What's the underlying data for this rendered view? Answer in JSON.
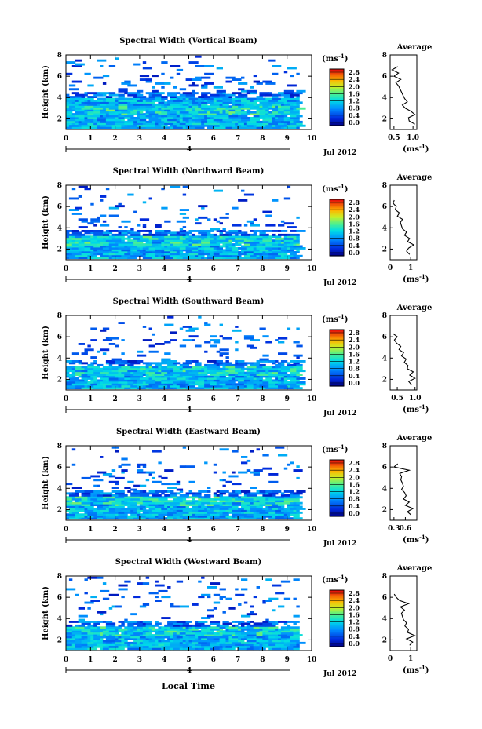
{
  "figure": {
    "xlabel": "Local Time",
    "units_label": "(ms",
    "units_exp": "-1",
    "units_close": ")",
    "avg_title": "Average",
    "date_label": "Jul 2012",
    "day_marker": "4",
    "height_label": "Height (km)",
    "colorbar_ticks": [
      "0.0",
      "0.4",
      "0.8",
      "1.2",
      "1.6",
      "2.0",
      "2.4",
      "2.8"
    ],
    "colorbar_range": [
      0.0,
      2.8
    ],
    "colors": {
      "low": "#000080",
      "mid": "#00c8c8",
      "high": "#ff2000"
    }
  },
  "chart_data": [
    {
      "type": "heatmap",
      "title": "Spectral Width (Vertical Beam)",
      "xlabel": "Local Time",
      "ylabel": "Height (km)",
      "xlim": [
        0,
        10
      ],
      "ylim": [
        1,
        8
      ],
      "xticks": [
        "0",
        "1",
        "2",
        "3",
        "4",
        "5",
        "6",
        "7",
        "8",
        "9",
        "10"
      ],
      "yticks": [
        "2",
        "4",
        "6",
        "8"
      ],
      "colorbar_ticks": [
        "0.0",
        "0.4",
        "0.8",
        "1.2",
        "1.6",
        "2.0",
        "2.4",
        "2.8"
      ],
      "average": {
        "xlim": [
          0.4,
          1.1
        ],
        "xticks": [
          "0.5",
          "1.0"
        ],
        "height": [
          1.5,
          1.8,
          2.1,
          2.4,
          2.7,
          3.0,
          3.3,
          3.6,
          3.9,
          4.2,
          4.5,
          4.8,
          5.1,
          5.4,
          5.7,
          6.0,
          6.3,
          6.6,
          6.9
        ],
        "width": [
          1.05,
          0.9,
          0.88,
          1.05,
          0.95,
          0.8,
          0.72,
          0.85,
          0.78,
          0.74,
          0.7,
          0.66,
          0.62,
          0.55,
          0.68,
          0.5,
          0.62,
          0.45,
          0.6
        ]
      }
    },
    {
      "type": "heatmap",
      "title": "Spectral Width (Northward Beam)",
      "xlabel": "Local Time",
      "ylabel": "Height (km)",
      "xlim": [
        0,
        10
      ],
      "ylim": [
        1,
        8
      ],
      "xticks": [
        "0",
        "1",
        "2",
        "3",
        "4",
        "5",
        "6",
        "7",
        "8",
        "9",
        "10"
      ],
      "yticks": [
        "2",
        "4",
        "6",
        "8"
      ],
      "colorbar_ticks": [
        "0.0",
        "0.4",
        "0.8",
        "1.2",
        "1.6",
        "2.0",
        "2.4",
        "2.8"
      ],
      "average": {
        "xlim": [
          0,
          1.3
        ],
        "xticks": [
          "0",
          "1"
        ],
        "height": [
          1.5,
          1.8,
          2.1,
          2.4,
          2.7,
          3.0,
          3.3,
          3.6,
          3.9,
          4.2,
          4.5,
          4.8,
          5.1,
          5.4,
          5.7,
          6.0,
          6.3,
          6.6
        ],
        "width": [
          0.95,
          0.8,
          0.9,
          1.15,
          0.85,
          0.95,
          0.7,
          0.8,
          0.6,
          0.55,
          0.5,
          0.6,
          0.35,
          0.45,
          0.25,
          0.3,
          0.15,
          0.2
        ]
      }
    },
    {
      "type": "heatmap",
      "title": "Spectral Width (Southward Beam)",
      "xlabel": "Local Time",
      "ylabel": "Height (km)",
      "xlim": [
        0,
        10
      ],
      "ylim": [
        1,
        8
      ],
      "xticks": [
        "0",
        "1",
        "2",
        "3",
        "4",
        "5",
        "6",
        "7",
        "8",
        "9",
        "10"
      ],
      "yticks": [
        "2",
        "4",
        "6",
        "8"
      ],
      "colorbar_ticks": [
        "0.0",
        "0.4",
        "0.8",
        "1.2",
        "1.6",
        "2.0",
        "2.4",
        "2.8"
      ],
      "average": {
        "xlim": [
          0.3,
          1.05
        ],
        "xticks": [
          "0.5",
          "1.0"
        ],
        "height": [
          1.5,
          1.8,
          2.1,
          2.4,
          2.7,
          3.0,
          3.3,
          3.6,
          3.9,
          4.2,
          4.5,
          4.8,
          5.1,
          5.4,
          5.7,
          6.0,
          6.3
        ],
        "width": [
          0.9,
          0.82,
          1.0,
          0.85,
          0.95,
          0.78,
          0.8,
          0.7,
          0.75,
          0.62,
          0.68,
          0.55,
          0.6,
          0.48,
          0.42,
          0.5,
          0.38
        ]
      }
    },
    {
      "type": "heatmap",
      "title": "Spectral Width (Eastward Beam)",
      "xlabel": "Local Time",
      "ylabel": "Height (km)",
      "xlim": [
        0,
        10
      ],
      "ylim": [
        1,
        8
      ],
      "xticks": [
        "0",
        "1",
        "2",
        "3",
        "4",
        "5",
        "6",
        "7",
        "8",
        "9",
        "10"
      ],
      "yticks": [
        "2",
        "4",
        "6",
        "8"
      ],
      "colorbar_ticks": [
        "0.0",
        "0.4",
        "0.8",
        "1.2",
        "1.6",
        "2.0",
        "2.4",
        "2.8"
      ],
      "average": {
        "xlim": [
          0.2,
          0.9
        ],
        "xticks": [
          "0.3",
          "0.6"
        ],
        "height": [
          1.5,
          1.8,
          2.1,
          2.4,
          2.7,
          3.0,
          3.3,
          3.6,
          3.9,
          4.2,
          4.5,
          4.8,
          5.1,
          5.4,
          5.7,
          6.0,
          6.3
        ],
        "width": [
          0.75,
          0.65,
          0.8,
          0.6,
          0.7,
          0.55,
          0.62,
          0.58,
          0.5,
          0.55,
          0.52,
          0.48,
          0.5,
          0.45,
          0.7,
          0.3,
          0.4
        ]
      }
    },
    {
      "type": "heatmap",
      "title": "Spectral Width (Westward Beam)",
      "xlabel": "Local Time",
      "ylabel": "Height (km)",
      "xlim": [
        0,
        10
      ],
      "ylim": [
        1,
        8
      ],
      "xticks": [
        "0",
        "1",
        "2",
        "3",
        "4",
        "5",
        "6",
        "7",
        "8",
        "9",
        "10"
      ],
      "yticks": [
        "2",
        "4",
        "6",
        "8"
      ],
      "colorbar_ticks": [
        "0.0",
        "0.4",
        "0.8",
        "1.2",
        "1.6",
        "2.0",
        "2.4",
        "2.8"
      ],
      "average": {
        "xlim": [
          0,
          1.3
        ],
        "xticks": [
          "0",
          "1"
        ],
        "height": [
          1.5,
          1.8,
          2.1,
          2.4,
          2.7,
          3.0,
          3.3,
          3.6,
          3.9,
          4.2,
          4.5,
          4.8,
          5.1,
          5.4,
          5.7,
          6.0,
          6.3
        ],
        "width": [
          0.95,
          1.1,
          0.8,
          1.2,
          0.85,
          0.9,
          0.72,
          0.8,
          0.65,
          0.6,
          0.55,
          0.7,
          0.5,
          0.9,
          0.45,
          0.3,
          0.2
        ]
      }
    }
  ]
}
